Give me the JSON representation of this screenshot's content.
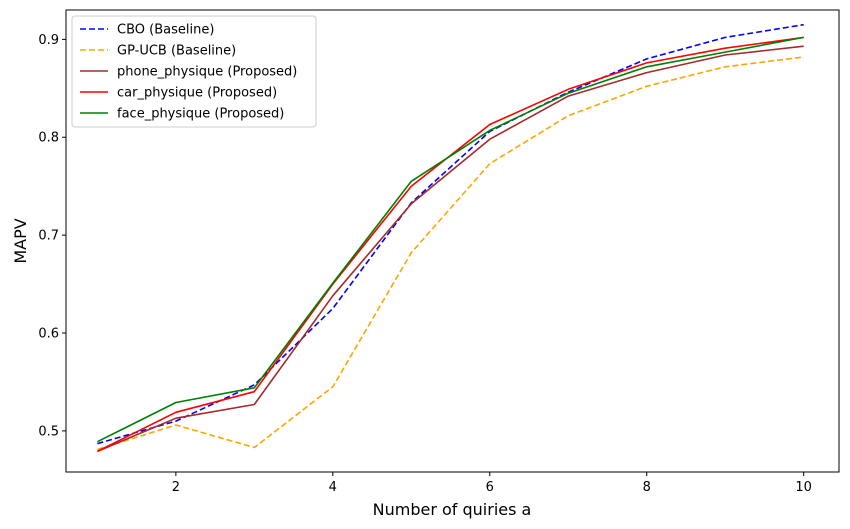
{
  "chart_data": {
    "type": "line",
    "title": "",
    "xlabel": "Number of quiries a",
    "ylabel": "MAPV",
    "xlim": [
      0.6,
      10.45
    ],
    "ylim": [
      0.458,
      0.93
    ],
    "xticks": [
      2,
      4,
      6,
      8,
      10
    ],
    "yticks": [
      0.5,
      0.6,
      0.7,
      0.8,
      0.9
    ],
    "xtick_labels": [
      "2",
      "4",
      "6",
      "8",
      "10"
    ],
    "ytick_labels": [
      "0.5",
      "0.6",
      "0.7",
      "0.8",
      "0.9"
    ],
    "grid": false,
    "legend_position": "top-left",
    "x": [
      1,
      2,
      3,
      4,
      5,
      6,
      7,
      8,
      9,
      10
    ],
    "series": [
      {
        "name": "CBO (Baseline)",
        "color": "#0000ff",
        "dash": true,
        "values": [
          0.487,
          0.51,
          0.547,
          0.625,
          0.733,
          0.806,
          0.846,
          0.88,
          0.902,
          0.915
        ]
      },
      {
        "name": "GP-UCB (Baseline)",
        "color": "#ffa500",
        "dash": true,
        "values": [
          0.481,
          0.506,
          0.483,
          0.545,
          0.682,
          0.773,
          0.822,
          0.852,
          0.872,
          0.882
        ]
      },
      {
        "name": "phone_physique (Proposed)",
        "color": "#a52a2a",
        "dash": false,
        "values": [
          0.479,
          0.513,
          0.527,
          0.638,
          0.732,
          0.798,
          0.842,
          0.866,
          0.884,
          0.893
        ]
      },
      {
        "name": "car_physique (Proposed)",
        "color": "#ff0000",
        "dash": false,
        "values": [
          0.479,
          0.519,
          0.54,
          0.65,
          0.75,
          0.813,
          0.849,
          0.876,
          0.891,
          0.902
        ]
      },
      {
        "name": "face_physique (Proposed)",
        "color": "#008000",
        "dash": false,
        "values": [
          0.489,
          0.529,
          0.544,
          0.651,
          0.755,
          0.807,
          0.845,
          0.872,
          0.887,
          0.902
        ]
      }
    ]
  }
}
